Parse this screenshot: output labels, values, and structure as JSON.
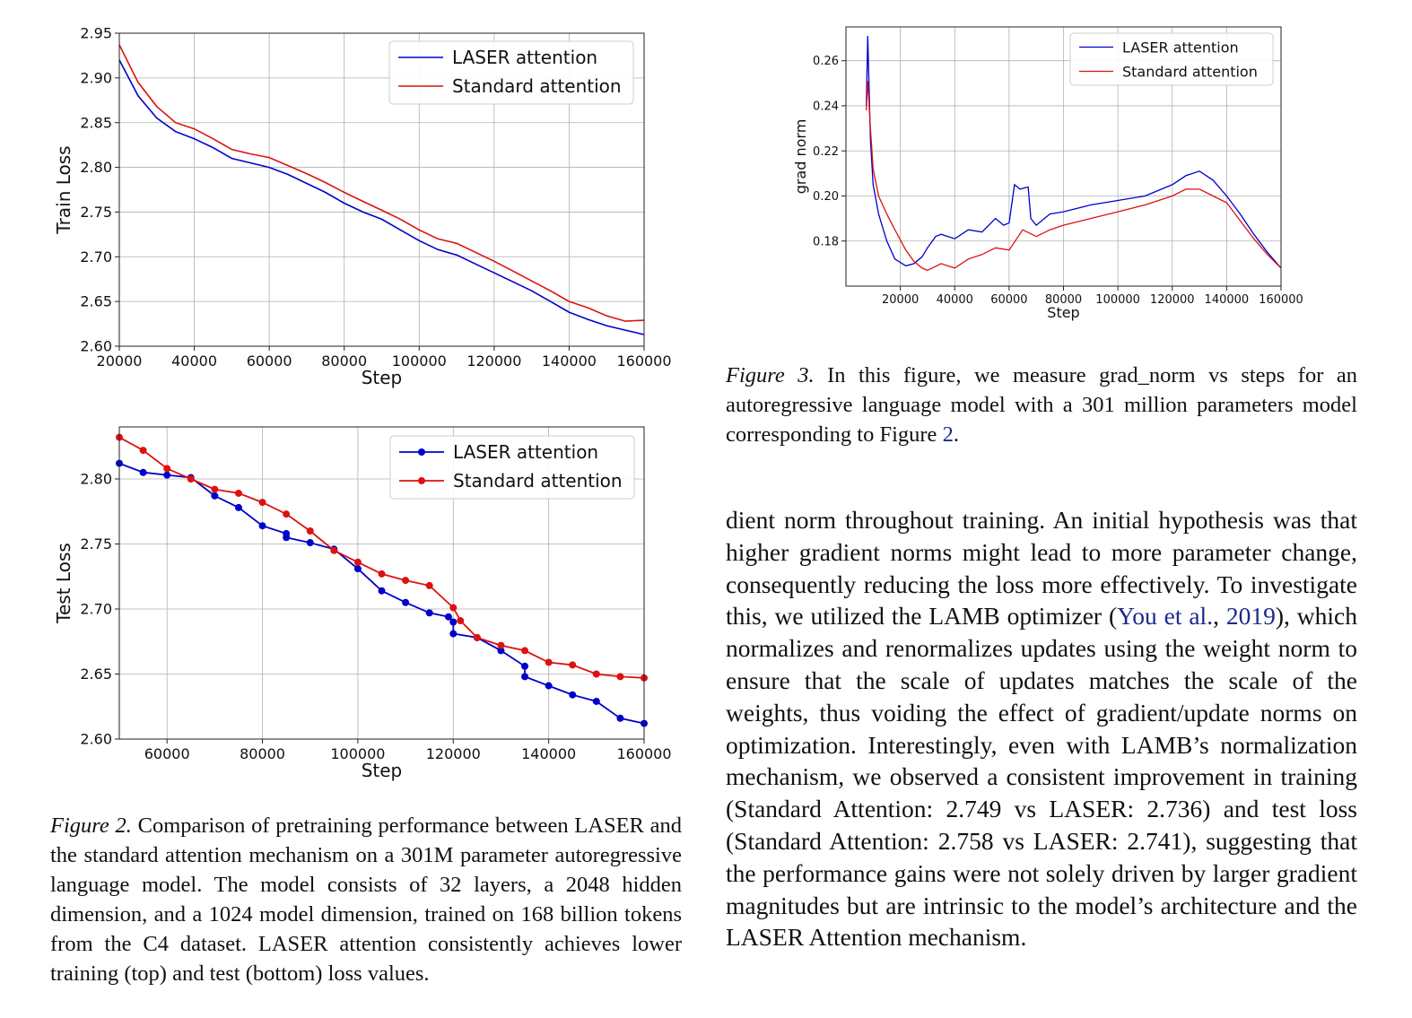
{
  "chart_data": [
    {
      "id": "train",
      "type": "line",
      "xlabel": "Step",
      "ylabel": "Train Loss",
      "xlim": [
        20000,
        160000
      ],
      "ylim": [
        2.6,
        2.95
      ],
      "xticks": [
        20000,
        40000,
        60000,
        80000,
        100000,
        120000,
        140000,
        160000
      ],
      "xtick_labels": [
        "20000",
        "40000",
        "60000",
        "80000",
        "100000",
        "120000",
        "140000",
        "160000"
      ],
      "yticks": [
        2.6,
        2.65,
        2.7,
        2.75,
        2.8,
        2.85,
        2.9,
        2.95
      ],
      "ytick_labels": [
        "2.60",
        "2.65",
        "2.70",
        "2.75",
        "2.80",
        "2.85",
        "2.90",
        "2.95"
      ],
      "grid": true,
      "legend": "top-right",
      "series": [
        {
          "name": "LASER attention",
          "color": "#0000cc",
          "x": [
            20000,
            25000,
            30000,
            35000,
            40000,
            45000,
            50000,
            55000,
            60000,
            65000,
            70000,
            75000,
            80000,
            85000,
            90000,
            95000,
            100000,
            105000,
            110000,
            115000,
            120000,
            125000,
            130000,
            135000,
            140000,
            145000,
            150000,
            155000,
            160000
          ],
          "y": [
            2.92,
            2.88,
            2.855,
            2.84,
            2.832,
            2.822,
            2.81,
            2.805,
            2.8,
            2.792,
            2.782,
            2.772,
            2.76,
            2.75,
            2.742,
            2.73,
            2.718,
            2.708,
            2.702,
            2.692,
            2.682,
            2.672,
            2.662,
            2.65,
            2.638,
            2.63,
            2.623,
            2.618,
            2.613
          ]
        },
        {
          "name": "Standard attention",
          "color": "#dd1111",
          "x": [
            20000,
            25000,
            30000,
            35000,
            40000,
            45000,
            50000,
            55000,
            60000,
            65000,
            70000,
            75000,
            80000,
            85000,
            90000,
            95000,
            100000,
            105000,
            110000,
            115000,
            120000,
            125000,
            130000,
            135000,
            140000,
            145000,
            150000,
            155000,
            160000
          ],
          "y": [
            2.937,
            2.895,
            2.868,
            2.85,
            2.843,
            2.832,
            2.82,
            2.815,
            2.811,
            2.802,
            2.793,
            2.783,
            2.772,
            2.762,
            2.752,
            2.742,
            2.73,
            2.72,
            2.715,
            2.705,
            2.695,
            2.684,
            2.673,
            2.662,
            2.65,
            2.643,
            2.634,
            2.628,
            2.629
          ]
        }
      ]
    },
    {
      "id": "test",
      "type": "line",
      "markers": true,
      "xlabel": "Step",
      "ylabel": "Test Loss",
      "xlim": [
        50000,
        160000
      ],
      "ylim": [
        2.6,
        2.84
      ],
      "xticks": [
        60000,
        80000,
        100000,
        120000,
        140000,
        160000
      ],
      "xtick_labels": [
        "60000",
        "80000",
        "100000",
        "120000",
        "140000",
        "160000"
      ],
      "yticks": [
        2.6,
        2.65,
        2.7,
        2.75,
        2.8
      ],
      "ytick_labels": [
        "2.60",
        "2.65",
        "2.70",
        "2.75",
        "2.80"
      ],
      "grid": true,
      "legend": "top-right",
      "series": [
        {
          "name": "LASER attention",
          "color": "#0000cc",
          "x": [
            50000,
            55000,
            60000,
            65000,
            70000,
            75000,
            80000,
            85000,
            85000,
            90000,
            95000,
            100000,
            105000,
            110000,
            115000,
            119000,
            120000,
            120000,
            125000,
            130000,
            135000,
            135000,
            140000,
            145000,
            150000,
            155000,
            160000
          ],
          "y": [
            2.812,
            2.805,
            2.803,
            2.801,
            2.787,
            2.778,
            2.764,
            2.758,
            2.755,
            2.751,
            2.746,
            2.731,
            2.714,
            2.705,
            2.697,
            2.694,
            2.69,
            2.681,
            2.678,
            2.668,
            2.656,
            2.648,
            2.641,
            2.634,
            2.629,
            2.616,
            2.612
          ]
        },
        {
          "name": "Standard attention",
          "color": "#dd1111",
          "x": [
            50000,
            55000,
            60000,
            65000,
            70000,
            75000,
            80000,
            85000,
            90000,
            95000,
            100000,
            105000,
            110000,
            115000,
            120000,
            121500,
            125000,
            130000,
            135000,
            140000,
            145000,
            150000,
            155000,
            160000
          ],
          "y": [
            2.832,
            2.822,
            2.808,
            2.8,
            2.792,
            2.789,
            2.782,
            2.773,
            2.76,
            2.745,
            2.736,
            2.727,
            2.722,
            2.718,
            2.701,
            2.691,
            2.678,
            2.672,
            2.668,
            2.659,
            2.657,
            2.65,
            2.648,
            2.647
          ]
        }
      ]
    },
    {
      "id": "grad",
      "type": "line",
      "xlabel": "Step",
      "ylabel": "grad norm",
      "xlim": [
        0,
        160000
      ],
      "ylim": [
        0.16,
        0.275
      ],
      "xticks": [
        20000,
        40000,
        60000,
        80000,
        100000,
        120000,
        140000,
        160000
      ],
      "xtick_labels": [
        "20000",
        "40000",
        "60000",
        "80000",
        "100000",
        "120000",
        "140000",
        "160000"
      ],
      "yticks": [
        0.18,
        0.2,
        0.22,
        0.24,
        0.26
      ],
      "ytick_labels": [
        "0.18",
        "0.20",
        "0.22",
        "0.24",
        "0.26"
      ],
      "grid": true,
      "legend": "top-right",
      "series": [
        {
          "name": "LASER attention",
          "color": "#0000cc",
          "x": [
            7500,
            8000,
            9000,
            10000,
            12000,
            15000,
            18000,
            22000,
            25000,
            28000,
            30000,
            33000,
            35000,
            40000,
            45000,
            50000,
            55000,
            58000,
            60000,
            62000,
            64000,
            67000,
            68000,
            70000,
            75000,
            80000,
            90000,
            100000,
            110000,
            120000,
            125000,
            130000,
            135000,
            140000,
            145000,
            150000,
            155000,
            160000
          ],
          "y": [
            0.24,
            0.271,
            0.225,
            0.205,
            0.192,
            0.18,
            0.172,
            0.169,
            0.17,
            0.173,
            0.177,
            0.182,
            0.183,
            0.181,
            0.185,
            0.184,
            0.19,
            0.187,
            0.188,
            0.205,
            0.203,
            0.204,
            0.19,
            0.187,
            0.192,
            0.193,
            0.196,
            0.198,
            0.2,
            0.205,
            0.209,
            0.211,
            0.207,
            0.2,
            0.192,
            0.183,
            0.175,
            0.168
          ]
        },
        {
          "name": "Standard attention",
          "color": "#dd1111",
          "x": [
            7500,
            8000,
            9000,
            10000,
            12000,
            15000,
            18000,
            22000,
            25000,
            28000,
            30000,
            35000,
            40000,
            45000,
            50000,
            55000,
            60000,
            65000,
            70000,
            75000,
            80000,
            90000,
            100000,
            110000,
            120000,
            125000,
            130000,
            135000,
            140000,
            145000,
            150000,
            155000,
            160000
          ],
          "y": [
            0.238,
            0.251,
            0.23,
            0.212,
            0.2,
            0.192,
            0.185,
            0.176,
            0.171,
            0.168,
            0.167,
            0.17,
            0.168,
            0.172,
            0.174,
            0.177,
            0.176,
            0.185,
            0.182,
            0.185,
            0.187,
            0.19,
            0.193,
            0.196,
            0.2,
            0.203,
            0.203,
            0.2,
            0.197,
            0.189,
            0.181,
            0.174,
            0.168
          ]
        }
      ]
    }
  ],
  "captions": {
    "fig2": {
      "label": "Figure 2.",
      "text": " Comparison of pretraining performance between LASER and the standard attention mechanism on a 301M parameter autoregressive language model. The model consists of 32 layers, a 2048 hidden dimension, and a 1024 model dimension, trained on 168 billion tokens from the C4 dataset. LASER attention consistently achieves lower training (top) and test (bottom) loss values."
    },
    "fig3": {
      "label": "Figure 3.",
      "text_before_ref": " In this figure, we measure grad_norm vs steps for an autoregressive language model with a 301 million parameters model corresponding to Figure ",
      "ref": "2",
      "text_after_ref": "."
    }
  },
  "body": {
    "text_before_cite": "dient norm throughout training. An initial hypothesis was that higher gradient norms might lead to more parameter change, consequently reducing the loss more effectively. To investigate this, we utilized the LAMB optimizer (",
    "cite_author": "You et al.",
    "cite_sep": ", ",
    "cite_year": "2019",
    "text_after_cite": "), which normalizes and renormalizes updates using the weight norm to ensure that the scale of updates matches the scale of the weights, thus voiding the effect of gradient/update norms on optimization. Interestingly, even with LAMB’s normalization mechanism, we observed a consistent improvement in training (Standard Attention: 2.749 vs LASER: 2.736) and test loss (Standard Attention: 2.758 vs LASER: 2.741), suggesting that the performance gains were not solely driven by larger gradient magnitudes but are intrinsic to the model’s architecture and the LASER Attention mechanism."
  }
}
